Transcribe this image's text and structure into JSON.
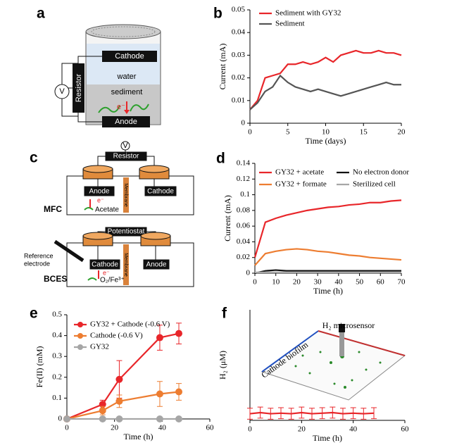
{
  "panels": [
    "a",
    "b",
    "c",
    "d",
    "e",
    "f"
  ],
  "diagrams": {
    "a": {
      "cathode": "Cathode",
      "water": "water",
      "sediment": "sediment",
      "anode": "Anode",
      "resistor": "Resistor",
      "meter": "V",
      "electron": "e⁻"
    },
    "c": {
      "meter": "V",
      "resistor": "Resistor",
      "mfc_anode": "Anode",
      "mfc_cathode": "Cathode",
      "mfc_membrane": "Membrane",
      "mfc_electron": "e⁻",
      "acetate": "Acetate",
      "mfc": "MFC",
      "potentiostat": "Potentiostat",
      "reference_1": "Reference",
      "reference_2": "electrode",
      "bces_cathode": "Cathode",
      "bces_anode": "Anode",
      "bces_membrane": "Membrane",
      "bces_electron": "e⁻",
      "acceptor": "O₂/Fe³⁺",
      "bces": "BCES"
    }
  },
  "chart_data": [
    {
      "type": "line",
      "xlabel": "Time  (days)",
      "ylabel": "Current (mA)",
      "x": [
        0,
        1,
        2,
        3,
        4,
        5,
        6,
        7,
        8,
        9,
        10,
        11,
        12,
        13,
        14,
        15,
        16,
        17,
        18,
        19,
        20
      ],
      "series": [
        {
          "name": "Sediment with GY32",
          "color": "#e8262a",
          "values": [
            0.006,
            0.01,
            0.02,
            0.021,
            0.022,
            0.026,
            0.026,
            0.027,
            0.026,
            0.027,
            0.029,
            0.027,
            0.03,
            0.031,
            0.032,
            0.031,
            0.031,
            0.032,
            0.031,
            0.031,
            0.03
          ]
        },
        {
          "name": "Sediment",
          "color": "#555555",
          "values": [
            0.006,
            0.009,
            0.014,
            0.016,
            0.021,
            0.018,
            0.016,
            0.015,
            0.014,
            0.015,
            0.014,
            0.013,
            0.012,
            0.013,
            0.014,
            0.015,
            0.016,
            0.017,
            0.018,
            0.017,
            0.017
          ]
        }
      ],
      "xlim": [
        0,
        20
      ],
      "xticks": [
        0,
        5,
        10,
        15,
        20
      ],
      "ylim": [
        0,
        0.05
      ],
      "yticks": [
        0,
        0.01,
        0.02,
        0.03,
        0.04,
        0.05
      ]
    },
    {
      "type": "line",
      "xlabel": "Time  (h)",
      "ylabel": "Current (mA)",
      "x": [
        0,
        5,
        10,
        15,
        20,
        25,
        30,
        35,
        40,
        45,
        50,
        55,
        60,
        65,
        70
      ],
      "series": [
        {
          "name": "GY32 + acetate",
          "color": "#e8262a",
          "values": [
            0.02,
            0.065,
            0.07,
            0.074,
            0.077,
            0.08,
            0.082,
            0.084,
            0.085,
            0.087,
            0.088,
            0.09,
            0.09,
            0.092,
            0.093
          ]
        },
        {
          "name": "GY32 + formate",
          "color": "#ed7d31",
          "values": [
            0.01,
            0.025,
            0.028,
            0.03,
            0.031,
            0.03,
            0.028,
            0.027,
            0.025,
            0.023,
            0.022,
            0.02,
            0.019,
            0.018,
            0.017
          ]
        },
        {
          "name": "No electron donor",
          "color": "#111111",
          "values": [
            0,
            0.003,
            0.004,
            0.003,
            0.003,
            0.003,
            0.003,
            0.003,
            0.003,
            0.003,
            0.003,
            0.003,
            0.003,
            0.003,
            0.003
          ]
        },
        {
          "name": "Sterilized cell",
          "color": "#a6a6a6",
          "values": [
            0.001,
            0.001,
            0.001,
            0.001,
            0.001,
            0.001,
            0.001,
            0.001,
            0.001,
            0.001,
            0.001,
            0.001,
            0.001,
            0.001,
            0.001
          ]
        }
      ],
      "xlim": [
        0,
        70
      ],
      "xticks": [
        0,
        10,
        20,
        30,
        40,
        50,
        60,
        70
      ],
      "ylim": [
        0,
        0.14
      ],
      "yticks": [
        0,
        0.02,
        0.04,
        0.06,
        0.08,
        0.1,
        0.12,
        0.14
      ]
    },
    {
      "type": "line",
      "xlabel": "Time  (h)",
      "ylabel": "Fe(II) (mM)",
      "markers": true,
      "x": [
        0,
        15,
        22,
        39,
        47
      ],
      "series": [
        {
          "name": "GY32 + Cathode (-0.6 V)",
          "color": "#e8262a",
          "values": [
            0,
            0.07,
            0.19,
            0.39,
            0.41
          ],
          "errors": [
            0,
            0.02,
            0.09,
            0.06,
            0.05
          ]
        },
        {
          "name": "Cathode (-0.6 V)",
          "color": "#ed7d31",
          "values": [
            0,
            0.04,
            0.085,
            0.12,
            0.13
          ],
          "errors": [
            0,
            0.02,
            0.03,
            0.06,
            0.04
          ]
        },
        {
          "name": "GY32",
          "color": "#a6a6a6",
          "values": [
            0,
            0,
            0,
            0,
            0
          ]
        }
      ],
      "xlim": [
        0,
        60
      ],
      "xticks": [
        0,
        20,
        40,
        60
      ],
      "ylim": [
        0,
        0.5
      ],
      "yticks": [
        0,
        0.1,
        0.2,
        0.3,
        0.4,
        0.5
      ]
    },
    {
      "type": "line",
      "xlabel": "Time  (h)",
      "ylabel": "H₂ (μM)",
      "annotations": [
        "Cathode biofilm",
        "H₂ microsensor"
      ],
      "x": [
        0,
        4,
        8,
        12,
        16,
        20,
        24,
        28,
        32,
        36,
        40,
        44,
        48
      ],
      "series": [
        {
          "color": "#e8262a",
          "values": [
            0.06,
            0.07,
            0.06,
            0.065,
            0.06,
            0.07,
            0.06,
            0.065,
            0.07,
            0.06,
            0.065,
            0.06,
            0.065
          ],
          "errors": [
            0.05,
            0.05,
            0.05,
            0.05,
            0.05,
            0.05,
            0.05,
            0.05,
            0.05,
            0.05,
            0.05,
            0.05,
            0.05
          ]
        }
      ],
      "xlim": [
        0,
        60
      ],
      "xticks": [
        0,
        20,
        40,
        60
      ],
      "ylim": [
        0,
        1
      ]
    }
  ]
}
